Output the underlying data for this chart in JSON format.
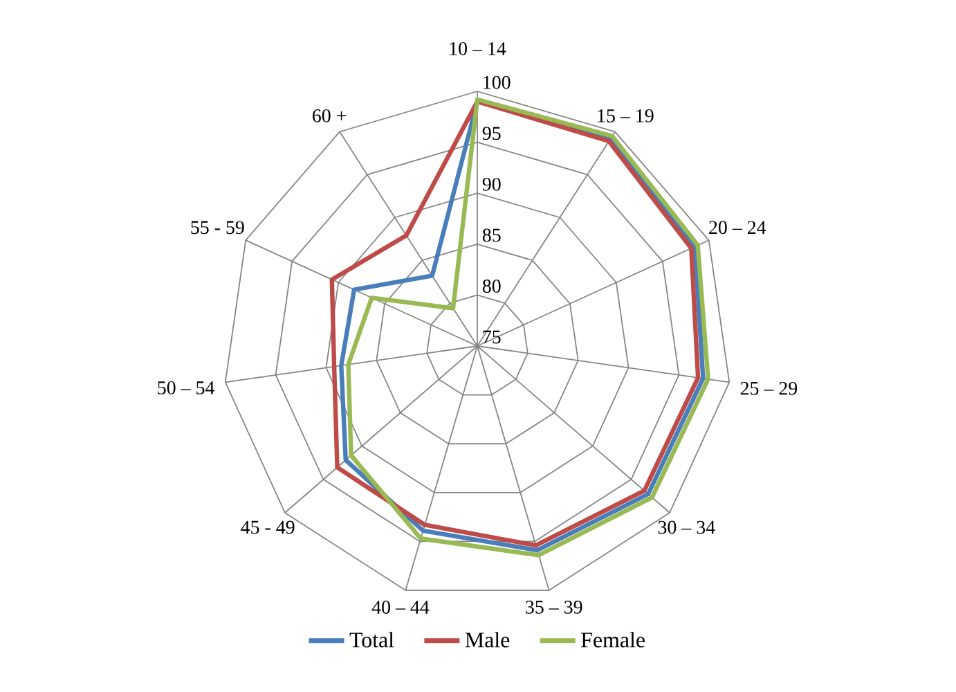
{
  "chart_data": {
    "type": "radar",
    "categories": [
      "10 – 14",
      "15 – 19",
      "20 – 24",
      "25 – 29",
      "30 – 34",
      "35 – 39",
      "40 – 44",
      "45 - 49",
      "50 – 54",
      "55 - 59",
      "60 +"
    ],
    "series": [
      {
        "name": "Total",
        "color": "#4a7ebb",
        "values": [
          99,
          99.3,
          98.5,
          97.4,
          97.2,
          95.9,
          93.9,
          92.1,
          88.5,
          88.3,
          83.2
        ]
      },
      {
        "name": "Male",
        "color": "#be4b48",
        "values": [
          99,
          98.9,
          98.1,
          96.9,
          96.7,
          95.4,
          93.3,
          93.2,
          89.2,
          90.7,
          87.9
        ]
      },
      {
        "name": "Female",
        "color": "#98b954",
        "values": [
          99.2,
          99.5,
          98.8,
          97.9,
          97.7,
          96.4,
          94.7,
          91.4,
          87.8,
          86.4,
          79.4
        ]
      }
    ],
    "ylim": [
      75,
      100
    ],
    "yticks": [
      75,
      80,
      85,
      90,
      95,
      100
    ],
    "grid": true,
    "legend": "bottom",
    "marker": "none"
  }
}
